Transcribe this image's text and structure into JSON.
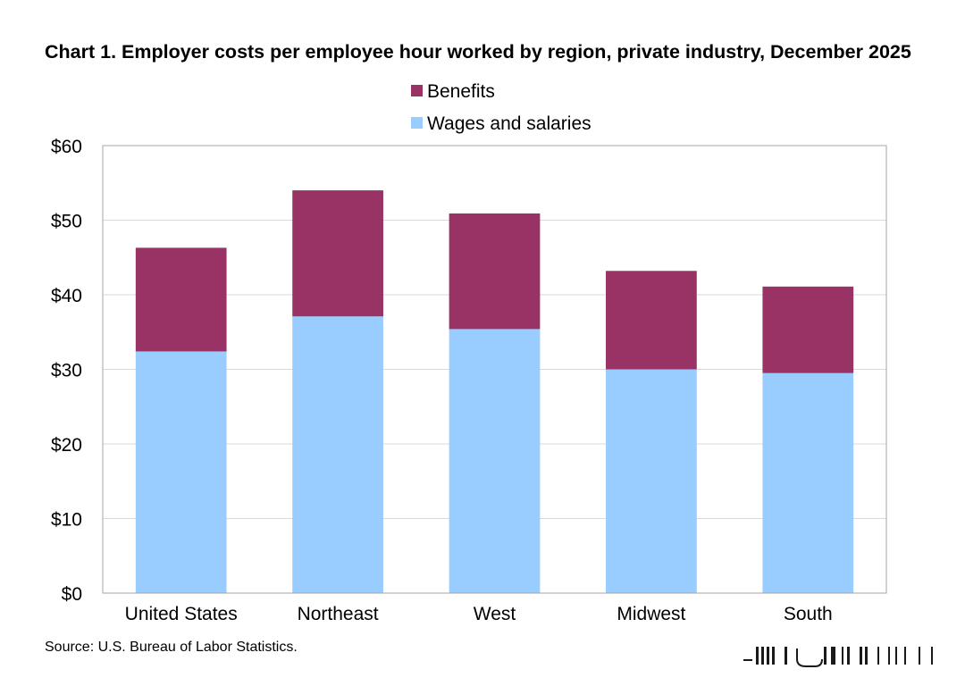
{
  "chart_data": {
    "type": "bar",
    "stacked": true,
    "title": "Chart 1. Employer costs per employee hour worked by region, private industry, December 2025",
    "categories": [
      "United States",
      "Northeast",
      "West",
      "Midwest",
      "South"
    ],
    "series": [
      {
        "name": "Wages and salaries",
        "color": "#99ccff",
        "values": [
          32.4,
          37.1,
          35.4,
          30.0,
          29.5
        ]
      },
      {
        "name": "Benefits",
        "color": "#993366",
        "values": [
          13.9,
          16.9,
          15.5,
          13.2,
          11.6
        ]
      }
    ],
    "ylim": [
      0,
      60
    ],
    "yticks": [
      0,
      10,
      20,
      30,
      40,
      50,
      60
    ],
    "ytick_labels": [
      "$0",
      "$10",
      "$20",
      "$30",
      "$40",
      "$50",
      "$60"
    ],
    "grid": true,
    "legend_position": "top",
    "xlabel": "",
    "ylabel": ""
  },
  "source": "Source: U.S. Bureau of Labor Statistics."
}
